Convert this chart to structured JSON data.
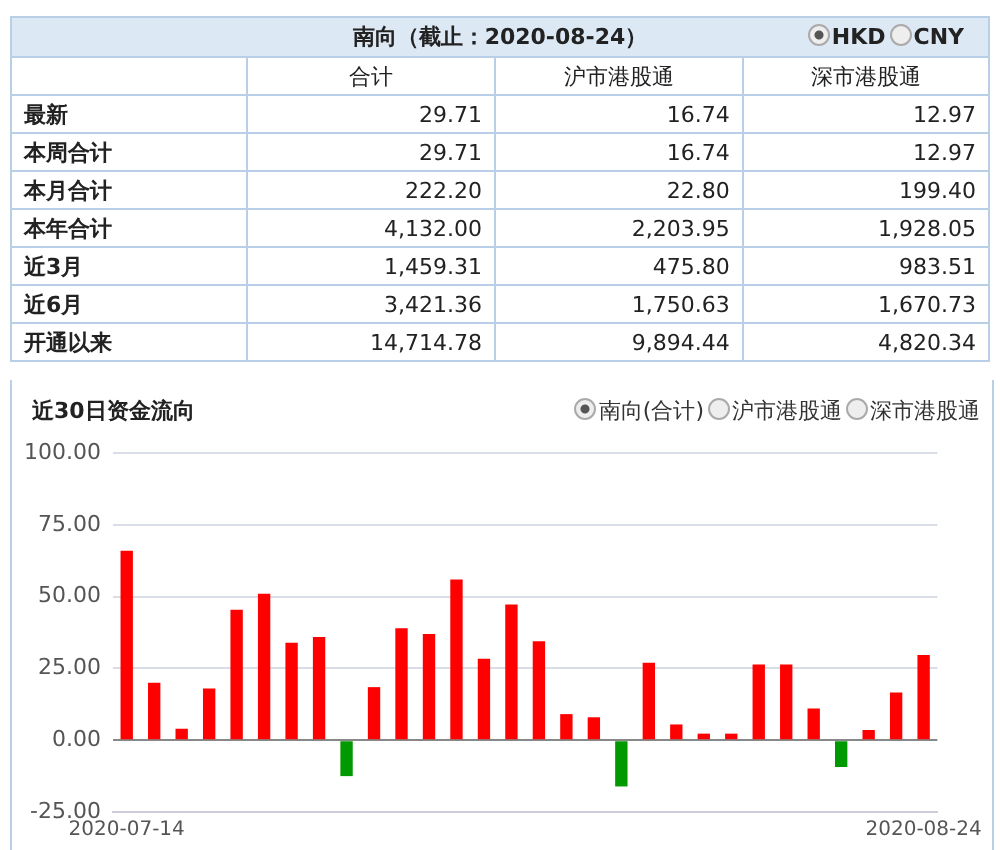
{
  "chart_data": [
    {
      "type": "other",
      "title": "南向（截止：2020-08-24）",
      "annotations": [
        "HKD",
        "CNY",
        "合计",
        "沪市港股通",
        "深市港股通",
        "最新",
        "29.71",
        "16.74",
        "12.97",
        "本周合计",
        "29.71",
        "16.74",
        "12.97",
        "本月合计",
        "222.20",
        "22.80",
        "199.40",
        "本年合计",
        "4,132.00",
        "2,203.95",
        "1,928.05",
        "近3月",
        "1,459.31",
        "475.80",
        "983.51",
        "近6月",
        "3,421.36",
        "1,750.63",
        "1,670.73",
        "开通以来",
        "14,714.78",
        "9,894.44",
        "4,820.34"
      ]
    },
    {
      "type": "bar",
      "title": "近30日资金流向",
      "annotations": [
        "南向(合计)",
        "沪市港股通",
        "深市港股通"
      ],
      "categories": [
        "2020-07-14",
        null,
        null,
        null,
        null,
        null,
        null,
        null,
        null,
        null,
        null,
        null,
        null,
        null,
        null,
        null,
        null,
        null,
        null,
        null,
        null,
        null,
        null,
        null,
        null,
        null,
        null,
        null,
        null,
        "2020-08-24"
      ],
      "values": [
        66,
        20,
        4,
        18,
        45.5,
        51,
        34,
        36,
        -12.5,
        18.5,
        39,
        37,
        56,
        28.4,
        47.3,
        34.5,
        9.1,
        8,
        -16.1,
        27,
        5.5,
        2.3,
        2.3,
        26.4,
        26.4,
        11.1,
        -9.3,
        3.6,
        16.6,
        29.7
      ],
      "colors": [
        "#ff0000",
        "#ff0000",
        "#ff0000",
        "#ff0000",
        "#ff0000",
        "#ff0000",
        "#ff0000",
        "#ff0000",
        "#009900",
        "#ff0000",
        "#ff0000",
        "#ff0000",
        "#ff0000",
        "#ff0000",
        "#ff0000",
        "#ff0000",
        "#ff0000",
        "#ff0000",
        "#009900",
        "#ff0000",
        "#ff0000",
        "#ff0000",
        "#ff0000",
        "#ff0000",
        "#ff0000",
        "#ff0000",
        "#009900",
        "#ff0000",
        "#ff0000",
        "#ff0000"
      ],
      "ylim": [
        -25,
        100
      ],
      "yticks": [
        {
          "value": -25,
          "label": "-25.00"
        },
        {
          "value": 0,
          "label": "0.00"
        },
        {
          "value": 25,
          "label": "25.00"
        },
        {
          "value": 50,
          "label": "50.00"
        },
        {
          "value": 75,
          "label": "75.00"
        },
        {
          "value": 100,
          "label": "100.00"
        }
      ],
      "grid": "y"
    }
  ]
}
